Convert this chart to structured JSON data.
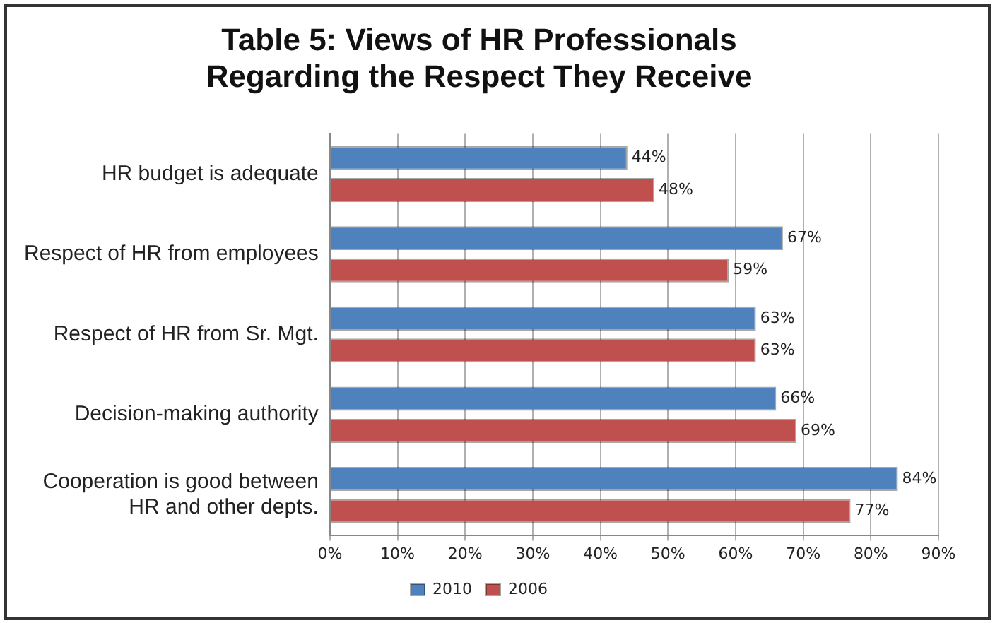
{
  "chart_data": {
    "type": "bar",
    "orientation": "horizontal",
    "title": "Table 5: Views of HR Professionals\nRegarding the Respect They Receive",
    "categories": [
      "HR budget is adequate",
      "Respect of HR from employees",
      "Respect of HR from Sr. Mgt.",
      "Decision-making authority",
      "Cooperation is good between\nHR and other depts."
    ],
    "series": [
      {
        "name": "2010",
        "color": "#4f81bd",
        "values": [
          44,
          67,
          63,
          66,
          84
        ],
        "value_labels": [
          "44%",
          "67%",
          "63%",
          "66%",
          "84%"
        ]
      },
      {
        "name": "2006",
        "color": "#c0504d",
        "values": [
          48,
          59,
          63,
          69,
          77
        ],
        "value_labels": [
          "48%",
          "59%",
          "63%",
          "69%",
          "77%"
        ]
      }
    ],
    "xlim": [
      0,
      90
    ],
    "xticks": [
      {
        "value": 0,
        "label": "0%"
      },
      {
        "value": 10,
        "label": "10%"
      },
      {
        "value": 20,
        "label": "20%"
      },
      {
        "value": 30,
        "label": "30%"
      },
      {
        "value": 40,
        "label": "40%"
      },
      {
        "value": 50,
        "label": "50%"
      },
      {
        "value": 60,
        "label": "60%"
      },
      {
        "value": 70,
        "label": "70%"
      },
      {
        "value": 80,
        "label": "80%"
      },
      {
        "value": 90,
        "label": "90%"
      }
    ],
    "grid": "x",
    "legend": "bottom"
  }
}
